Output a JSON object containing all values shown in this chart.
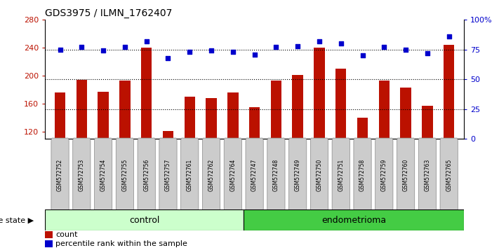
{
  "title": "GDS3975 / ILMN_1762407",
  "samples": [
    "GSM572752",
    "GSM572753",
    "GSM572754",
    "GSM572755",
    "GSM572756",
    "GSM572757",
    "GSM572761",
    "GSM572762",
    "GSM572764",
    "GSM572747",
    "GSM572748",
    "GSM572749",
    "GSM572750",
    "GSM572751",
    "GSM572758",
    "GSM572759",
    "GSM572760",
    "GSM572763",
    "GSM572765"
  ],
  "counts": [
    176,
    194,
    177,
    193,
    240,
    121,
    170,
    168,
    176,
    155,
    193,
    201,
    240,
    210,
    140,
    193,
    183,
    157,
    244
  ],
  "percentiles": [
    75,
    77,
    74,
    77,
    82,
    68,
    73,
    74,
    73,
    71,
    77,
    78,
    82,
    80,
    70,
    77,
    75,
    72,
    86
  ],
  "control_count": 9,
  "endometrioma_count": 10,
  "ylim_left": [
    110,
    280
  ],
  "ylim_right": [
    0,
    100
  ],
  "yticks_left": [
    120,
    160,
    200,
    240,
    280
  ],
  "yticks_right": [
    0,
    25,
    50,
    75,
    100
  ],
  "ytick_labels_right": [
    "0",
    "25",
    "50",
    "75",
    "100%"
  ],
  "hlines_pct": [
    25,
    50,
    75
  ],
  "bar_color": "#bb1100",
  "scatter_color": "#0000cc",
  "control_color": "#ccffcc",
  "endometrioma_color": "#44cc44",
  "bar_width": 0.5,
  "legend_count_label": "count",
  "legend_pct_label": "percentile rank within the sample",
  "disease_state_label": "disease state",
  "control_label": "control",
  "endometrioma_label": "endometrioma",
  "xticklabel_bg": "#cccccc",
  "title_fontsize": 10,
  "ylabel_left_fontsize": 8,
  "ylabel_right_fontsize": 8
}
